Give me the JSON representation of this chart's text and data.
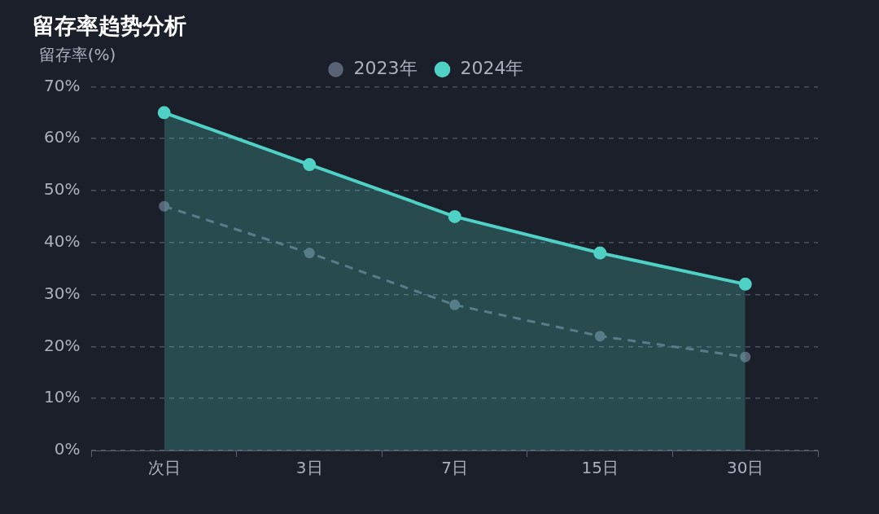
{
  "chart_data": {
    "type": "line",
    "title": "留存率趋势分析",
    "ylabel": "留存率(%)",
    "categories": [
      "次日",
      "3日",
      "7日",
      "15日",
      "30日"
    ],
    "series": [
      {
        "name": "2023年",
        "color": "#5a6275",
        "type": "line",
        "line_style": "dashed",
        "values": [
          47,
          38,
          28,
          22,
          18
        ]
      },
      {
        "name": "2024年",
        "color": "#4fd1c5",
        "type": "area",
        "line_style": "solid",
        "values": [
          65,
          55,
          45,
          38,
          32
        ]
      }
    ],
    "ylim": [
      0,
      70
    ],
    "yticks": [
      {
        "value": 0,
        "label": "0%"
      },
      {
        "value": 10,
        "label": "10%"
      },
      {
        "value": 20,
        "label": "20%"
      },
      {
        "value": 30,
        "label": "30%"
      },
      {
        "value": 40,
        "label": "40%"
      },
      {
        "value": 50,
        "label": "50%"
      },
      {
        "value": 60,
        "label": "60%"
      },
      {
        "value": 70,
        "label": "70%"
      }
    ],
    "grid": "y",
    "legend": "top",
    "marker": "circle"
  }
}
